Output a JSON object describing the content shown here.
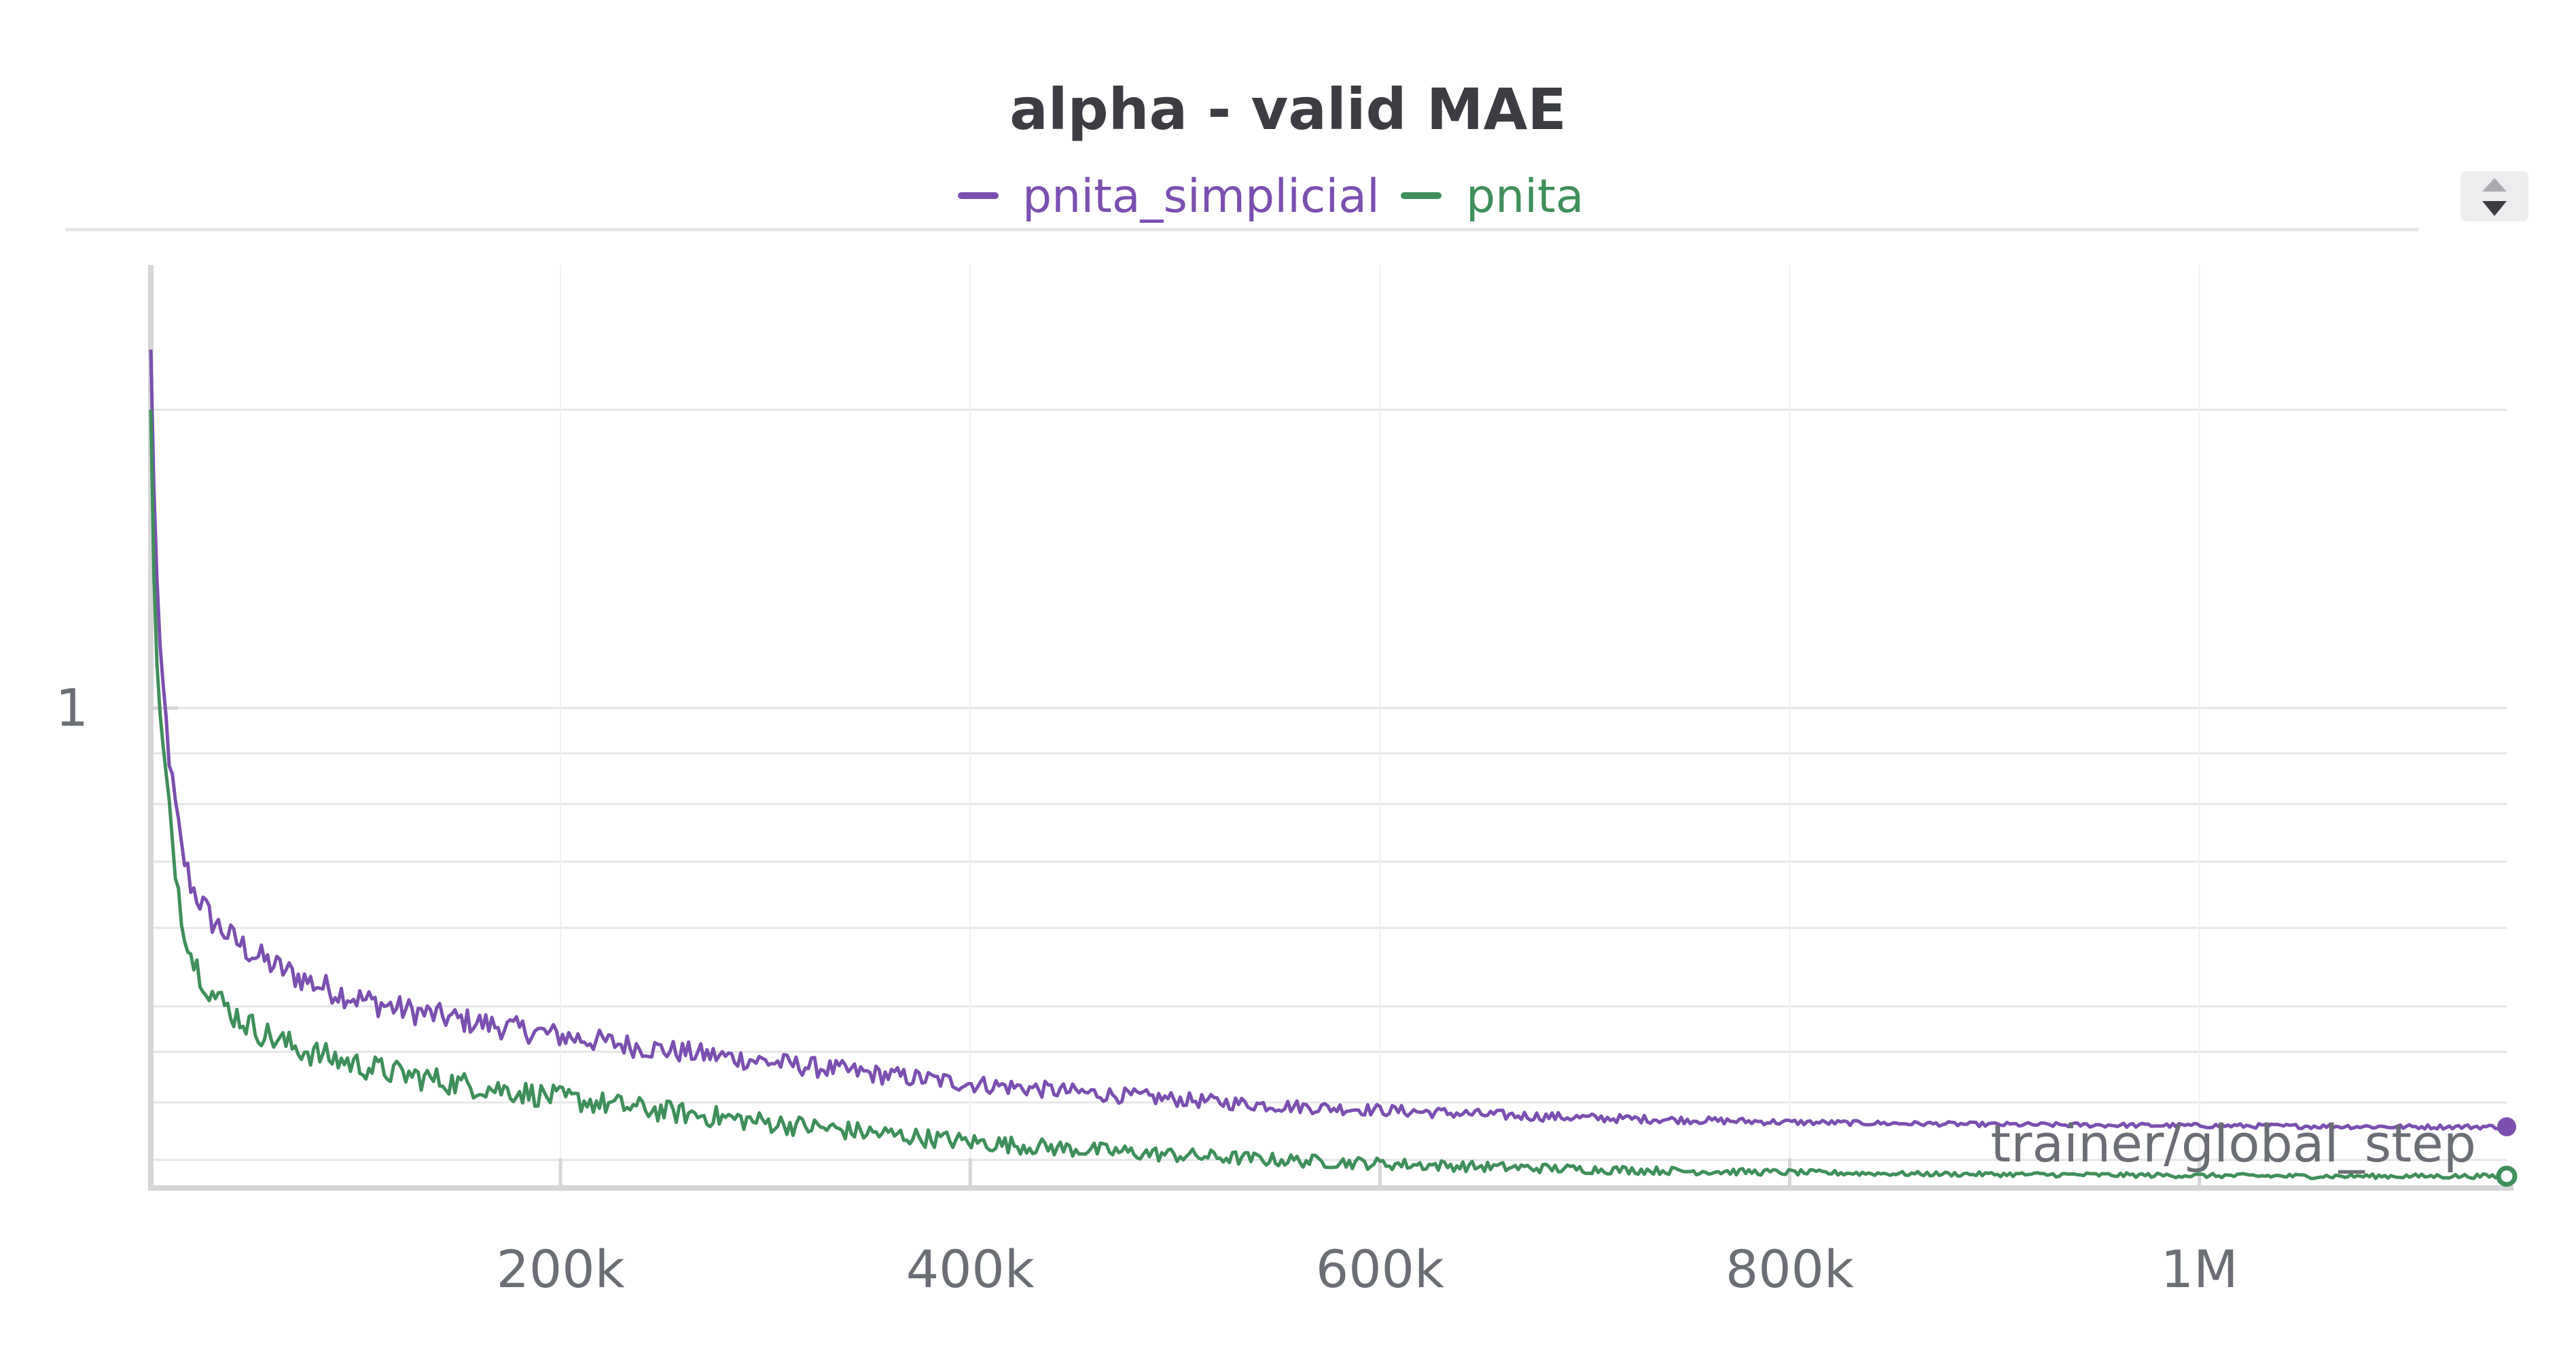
{
  "chart_data": {
    "type": "line",
    "title": "alpha - valid MAE",
    "xlabel": "trainer/global_step",
    "ylabel": "",
    "x_ticks": [
      "200k",
      "400k",
      "600k",
      "800k",
      "1M"
    ],
    "x_tick_values": [
      200000,
      400000,
      600000,
      800000,
      1000000
    ],
    "y_ticks": [
      "1"
    ],
    "y_tick_values": [
      1
    ],
    "xlim": [
      0,
      1150000
    ],
    "ylim": [
      0.33,
      2.8
    ],
    "y_scale": "log",
    "grid": true,
    "legend_position": "top-center",
    "colors": {
      "pnita_simplicial": "#7b4fb0",
      "pnita": "#3f8f5a",
      "title": "#3b3d42",
      "tick": "#6b6e74",
      "grid": "#e6e6e8"
    },
    "series": [
      {
        "name": "pnita_simplicial",
        "x": [
          0,
          2000,
          5000,
          10000,
          15000,
          20000,
          30000,
          40000,
          50000,
          60000,
          70000,
          80000,
          100000,
          120000,
          150000,
          180000,
          200000,
          250000,
          300000,
          350000,
          400000,
          450000,
          500000,
          550000,
          600000,
          650000,
          700000,
          750000,
          800000,
          850000,
          900000,
          950000,
          1000000,
          1050000,
          1100000,
          1150000
        ],
        "y": [
          2.3,
          1.5,
          1.1,
          0.85,
          0.72,
          0.66,
          0.61,
          0.585,
          0.565,
          0.55,
          0.538,
          0.527,
          0.51,
          0.498,
          0.485,
          0.474,
          0.467,
          0.452,
          0.44,
          0.428,
          0.418,
          0.41,
          0.403,
          0.397,
          0.393,
          0.389,
          0.386,
          0.384,
          0.382,
          0.381,
          0.38,
          0.3795,
          0.379,
          0.3785,
          0.378,
          0.378
        ]
      },
      {
        "name": "pnita",
        "x": [
          0,
          2000,
          5000,
          10000,
          15000,
          20000,
          30000,
          40000,
          50000,
          60000,
          70000,
          80000,
          100000,
          120000,
          150000,
          180000,
          200000,
          250000,
          300000,
          350000,
          400000,
          450000,
          500000,
          550000,
          600000,
          650000,
          700000,
          750000,
          800000,
          850000,
          900000,
          950000,
          1000000,
          1050000,
          1100000,
          1150000
        ],
        "y": [
          2.0,
          1.2,
          0.95,
          0.75,
          0.62,
          0.56,
          0.515,
          0.492,
          0.476,
          0.464,
          0.455,
          0.448,
          0.437,
          0.428,
          0.418,
          0.41,
          0.404,
          0.392,
          0.382,
          0.373,
          0.365,
          0.359,
          0.354,
          0.35,
          0.347,
          0.3445,
          0.3425,
          0.341,
          0.34,
          0.339,
          0.3385,
          0.338,
          0.3375,
          0.337,
          0.337,
          0.337
        ]
      }
    ]
  }
}
